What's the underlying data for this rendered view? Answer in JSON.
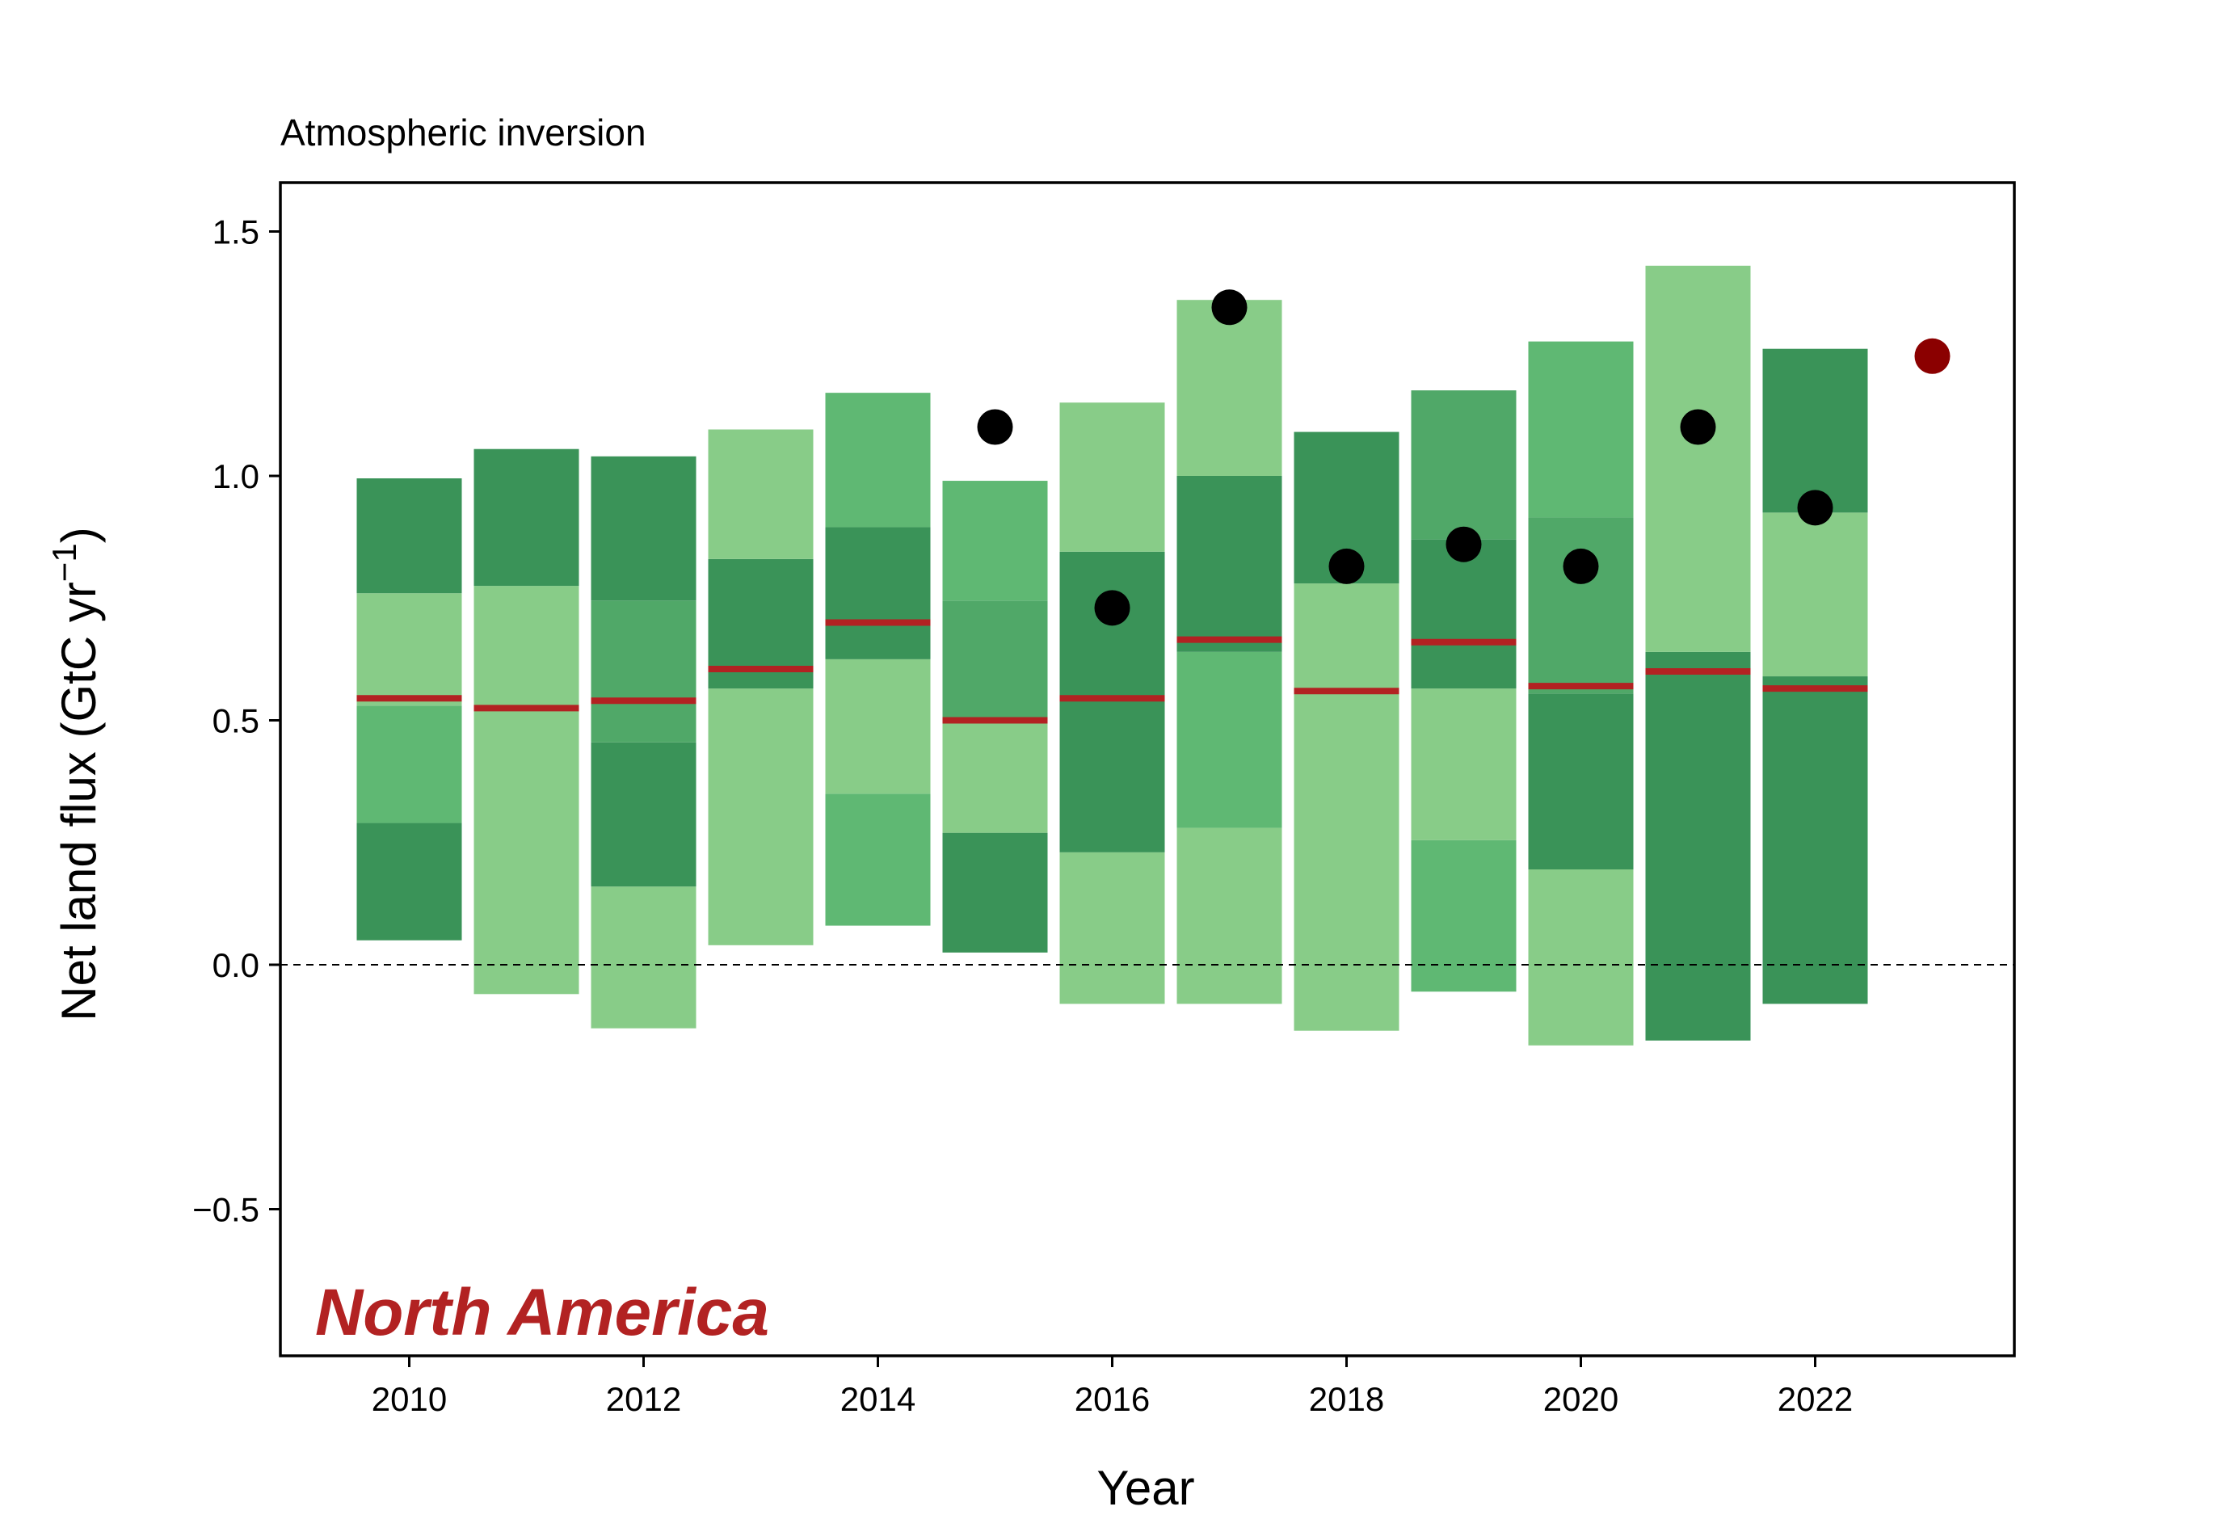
{
  "chart_data": {
    "type": "bar",
    "title": "Atmospheric inversion",
    "xlabel": "Year",
    "ylabel": "Net land flux (GtC yr",
    "ylabel_sup": "−1",
    "ylabel_close": ")",
    "annotation": "North America",
    "xlim": [
      2008.9,
      2023.7
    ],
    "ylim": [
      -0.8,
      1.6
    ],
    "xticks": [
      2010,
      2012,
      2014,
      2016,
      2018,
      2020,
      2022
    ],
    "xtick_labels": [
      "2010",
      "2012",
      "2014",
      "2016",
      "2018",
      "2020",
      "2022"
    ],
    "yticks": [
      -0.5,
      0.0,
      0.5,
      1.0,
      1.5
    ],
    "ytick_labels": [
      "−0.5",
      "0.0",
      "0.5",
      "1.0",
      "1.5"
    ],
    "zero_line": 0,
    "grid": false,
    "colors": {
      "light": "#88cc88",
      "mid": "#5fb873",
      "mid2": "#50a868",
      "dark": "#3a9358",
      "median": "#b22222",
      "observed": "#000000",
      "highlight": "#8b0000",
      "annotation": "#b22222"
    },
    "bars": [
      {
        "year": 2010,
        "segments": [
          {
            "from": 0.05,
            "to": 0.29,
            "shade": "dark"
          },
          {
            "from": 0.29,
            "to": 0.53,
            "shade": "mid"
          },
          {
            "from": 0.53,
            "to": 0.76,
            "shade": "light"
          },
          {
            "from": 0.76,
            "to": 0.995,
            "shade": "dark"
          }
        ],
        "median": 0.545
      },
      {
        "year": 2011,
        "segments": [
          {
            "from": -0.06,
            "to": 0.775,
            "shade": "light"
          },
          {
            "from": 0.775,
            "to": 1.055,
            "shade": "dark"
          }
        ],
        "median": 0.525
      },
      {
        "year": 2012,
        "segments": [
          {
            "from": -0.13,
            "to": 0.16,
            "shade": "light"
          },
          {
            "from": 0.16,
            "to": 0.455,
            "shade": "dark"
          },
          {
            "from": 0.455,
            "to": 0.745,
            "shade": "mid2"
          },
          {
            "from": 0.745,
            "to": 1.04,
            "shade": "dark"
          }
        ],
        "median": 0.54
      },
      {
        "year": 2013,
        "segments": [
          {
            "from": 0.04,
            "to": 0.565,
            "shade": "light"
          },
          {
            "from": 0.565,
            "to": 0.83,
            "shade": "dark"
          },
          {
            "from": 0.83,
            "to": 1.095,
            "shade": "light"
          }
        ],
        "median": 0.605
      },
      {
        "year": 2014,
        "segments": [
          {
            "from": 0.08,
            "to": 0.35,
            "shade": "mid"
          },
          {
            "from": 0.35,
            "to": 0.625,
            "shade": "light"
          },
          {
            "from": 0.625,
            "to": 0.895,
            "shade": "dark"
          },
          {
            "from": 0.895,
            "to": 1.17,
            "shade": "mid"
          }
        ],
        "median": 0.7
      },
      {
        "year": 2015,
        "segments": [
          {
            "from": 0.025,
            "to": 0.27,
            "shade": "dark"
          },
          {
            "from": 0.27,
            "to": 0.5,
            "shade": "light"
          },
          {
            "from": 0.5,
            "to": 0.745,
            "shade": "mid2"
          },
          {
            "from": 0.745,
            "to": 0.99,
            "shade": "mid"
          }
        ],
        "median": 0.5
      },
      {
        "year": 2016,
        "segments": [
          {
            "from": -0.08,
            "to": 0.23,
            "shade": "light"
          },
          {
            "from": 0.23,
            "to": 0.845,
            "shade": "dark"
          },
          {
            "from": 0.845,
            "to": 1.15,
            "shade": "light"
          }
        ],
        "median": 0.545
      },
      {
        "year": 2017,
        "segments": [
          {
            "from": -0.08,
            "to": 0.28,
            "shade": "light"
          },
          {
            "from": 0.28,
            "to": 0.64,
            "shade": "mid"
          },
          {
            "from": 0.64,
            "to": 1.0,
            "shade": "dark"
          },
          {
            "from": 1.0,
            "to": 1.36,
            "shade": "light"
          }
        ],
        "median": 0.665
      },
      {
        "year": 2018,
        "segments": [
          {
            "from": -0.135,
            "to": 0.78,
            "shade": "light"
          },
          {
            "from": 0.78,
            "to": 1.09,
            "shade": "dark"
          }
        ],
        "median": 0.56
      },
      {
        "year": 2019,
        "segments": [
          {
            "from": -0.055,
            "to": 0.255,
            "shade": "mid"
          },
          {
            "from": 0.255,
            "to": 0.565,
            "shade": "light"
          },
          {
            "from": 0.565,
            "to": 0.87,
            "shade": "dark"
          },
          {
            "from": 0.87,
            "to": 1.175,
            "shade": "mid2"
          }
        ],
        "median": 0.66
      },
      {
        "year": 2020,
        "segments": [
          {
            "from": -0.165,
            "to": 0.195,
            "shade": "light"
          },
          {
            "from": 0.195,
            "to": 0.555,
            "shade": "dark"
          },
          {
            "from": 0.555,
            "to": 0.915,
            "shade": "mid2"
          },
          {
            "from": 0.915,
            "to": 1.275,
            "shade": "mid"
          }
        ],
        "median": 0.57
      },
      {
        "year": 2021,
        "segments": [
          {
            "from": -0.155,
            "to": 0.64,
            "shade": "dark"
          },
          {
            "from": 0.64,
            "to": 1.43,
            "shade": "light"
          }
        ],
        "median": 0.6
      },
      {
        "year": 2022,
        "segments": [
          {
            "from": -0.08,
            "to": 0.59,
            "shade": "dark"
          },
          {
            "from": 0.59,
            "to": 0.925,
            "shade": "light"
          },
          {
            "from": 0.925,
            "to": 1.26,
            "shade": "dark"
          }
        ],
        "median": 0.565
      }
    ],
    "points": [
      {
        "year": 2015,
        "value": 1.1,
        "kind": "observed"
      },
      {
        "year": 2016,
        "value": 0.73,
        "kind": "observed"
      },
      {
        "year": 2017,
        "value": 1.345,
        "kind": "observed"
      },
      {
        "year": 2018,
        "value": 0.815,
        "kind": "observed"
      },
      {
        "year": 2019,
        "value": 0.86,
        "kind": "observed"
      },
      {
        "year": 2020,
        "value": 0.815,
        "kind": "observed"
      },
      {
        "year": 2021,
        "value": 1.1,
        "kind": "observed"
      },
      {
        "year": 2022,
        "value": 0.935,
        "kind": "observed"
      },
      {
        "year": 2023,
        "value": 1.245,
        "kind": "highlight"
      }
    ]
  }
}
